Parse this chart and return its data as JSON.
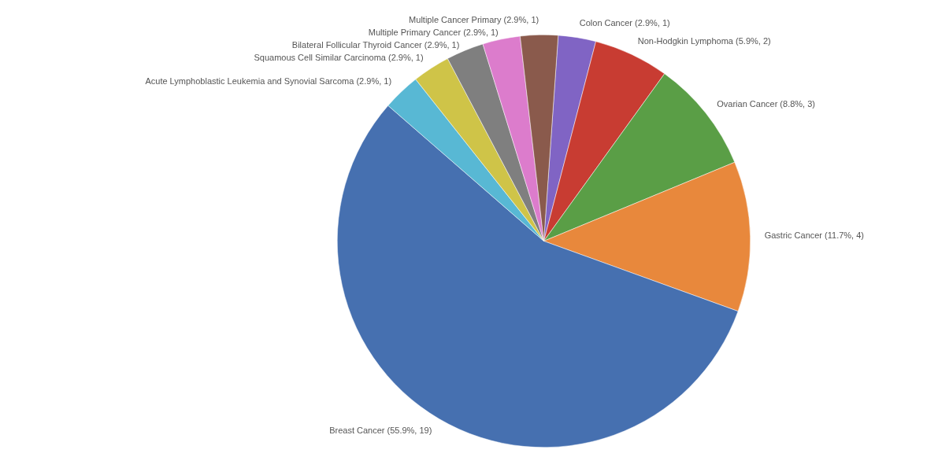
{
  "chart_data": {
    "type": "pie",
    "categories": [
      "Colon Cancer (2.9%, 1)",
      "Non-Hodgkin Lymphoma (5.9%, 2)",
      "Ovarian Cancer (8.8%, 3)",
      "Gastric Cancer (11.7%, 4)",
      "Breast Cancer (55.9%, 19)",
      "Acute Lymphoblastic Leukemia and Synovial Sarcoma (2.9%, 1)",
      "Squamous Cell Similar Carcinoma (2.9%, 1)",
      "Bilateral Follicular Thyroid Cancer (2.9%, 1)",
      "Multiple Primary Cancer (2.9%, 1)",
      "Multiple Cancer Primary (2.9%, 1)"
    ],
    "values": [
      1,
      2,
      3,
      4,
      19,
      1,
      1,
      1,
      1,
      1
    ],
    "colors": [
      "#8064c4",
      "#c83c32",
      "#5a9e46",
      "#e8883c",
      "#4670b0",
      "#58b8d4",
      "#cfc448",
      "#7f7f7f",
      "#dc7ccc",
      "#8a5a4c"
    ],
    "legend": false
  }
}
